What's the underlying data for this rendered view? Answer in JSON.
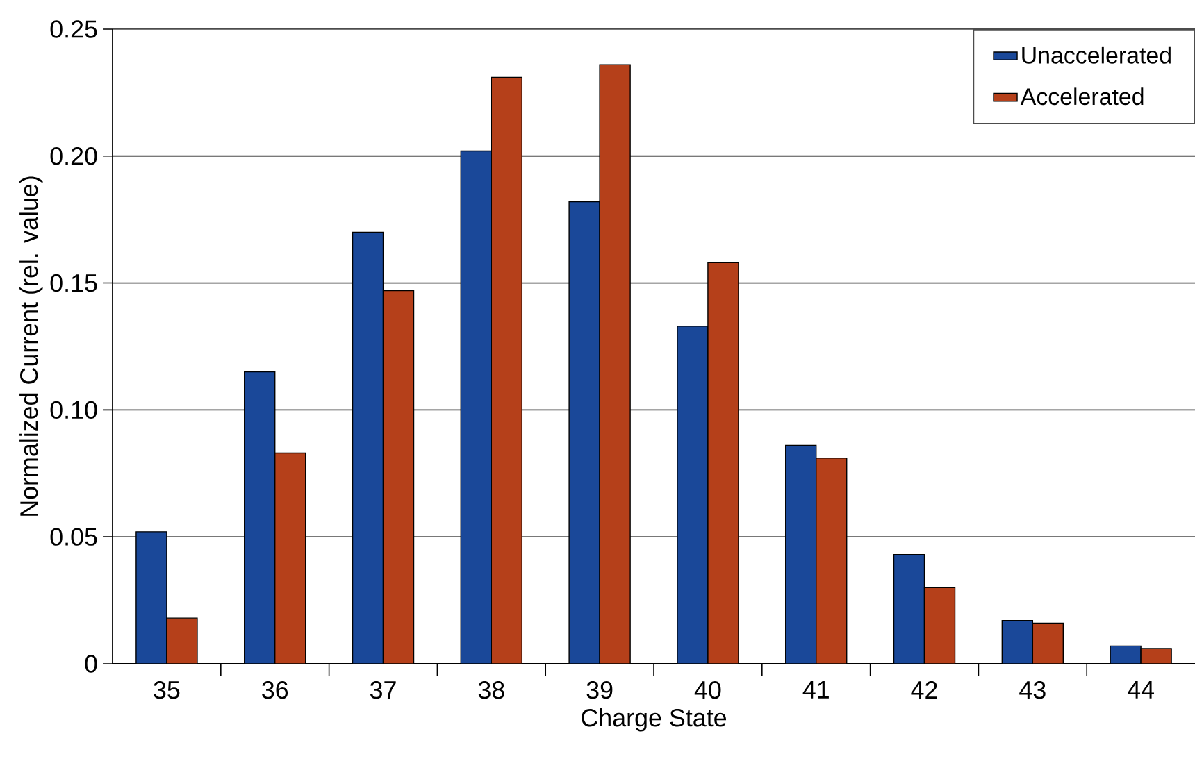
{
  "chart_data": {
    "type": "bar",
    "xlabel": "Charge  State",
    "ylabel": "Normalized Current  (rel. value)",
    "categories": [
      "35",
      "36",
      "37",
      "38",
      "39",
      "40",
      "41",
      "42",
      "43",
      "44"
    ],
    "series": [
      {
        "name": "Unaccelerated",
        "color": "#1a4899",
        "values": [
          0.052,
          0.115,
          0.17,
          0.202,
          0.182,
          0.133,
          0.086,
          0.043,
          0.017,
          0.007
        ]
      },
      {
        "name": "Accelerated",
        "color": "#b5401a",
        "values": [
          0.018,
          0.083,
          0.147,
          0.231,
          0.236,
          0.158,
          0.081,
          0.03,
          0.016,
          0.006
        ]
      }
    ],
    "ylim": [
      0,
      0.25
    ],
    "yticks": [
      {
        "value": 0,
        "label": "0"
      },
      {
        "value": 0.05,
        "label": "0.05"
      },
      {
        "value": 0.1,
        "label": "0.10"
      },
      {
        "value": 0.15,
        "label": "0.15"
      },
      {
        "value": 0.2,
        "label": "0.20"
      },
      {
        "value": 0.25,
        "label": "0.25"
      }
    ],
    "grid": "y",
    "legend": "top right"
  }
}
